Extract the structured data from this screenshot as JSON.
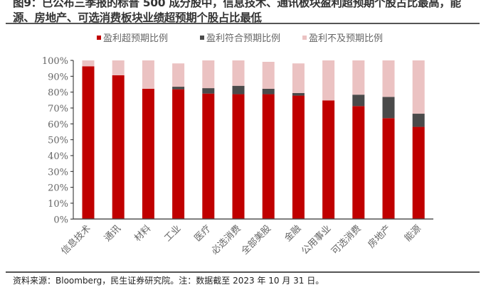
{
  "title": "图9：已公布三季报的标普 500 成分股中，信息技术、通讯板块盈利超预期个股占比最高，能源、房地产、可选消费板块业绩超预期个股占比最低",
  "footer": "资料来源：Bloomberg，民生证券研究院。注：数据截至 2023 年 10 月 31 日。",
  "chart_data": {
    "type": "bar",
    "stacked": true,
    "categories": [
      "信息技术",
      "通讯",
      "材料",
      "工业",
      "医疗",
      "必选消费",
      "全部美股",
      "金融",
      "公用事业",
      "可选消费",
      "房地产",
      "能源"
    ],
    "series": [
      {
        "name": "盈利超预期比例",
        "color": "#c00000",
        "values": [
          96.3,
          90.6,
          82.1,
          81.8,
          79.1,
          78.7,
          78.7,
          77.8,
          74.8,
          71.2,
          63.6,
          58.1
        ]
      },
      {
        "name": "盈利符合预期比例",
        "color": "#4a4a4a",
        "values": [
          0,
          0,
          0,
          1.6,
          3.4,
          5.3,
          3.4,
          1.6,
          0,
          7.2,
          13.4,
          8.3
        ]
      },
      {
        "name": "盈利不及预期比例",
        "color": "#ebc2c2",
        "values": [
          3.7,
          9.4,
          17.9,
          14.7,
          17.5,
          16.0,
          17.0,
          18.7,
          25.2,
          21.6,
          23.0,
          33.6
        ]
      }
    ],
    "yticks": [
      "0%",
      "10%",
      "20%",
      "30%",
      "40%",
      "50%",
      "60%",
      "70%",
      "80%",
      "90%",
      "100%"
    ],
    "ylim": [
      0,
      100
    ],
    "legend": "top"
  }
}
